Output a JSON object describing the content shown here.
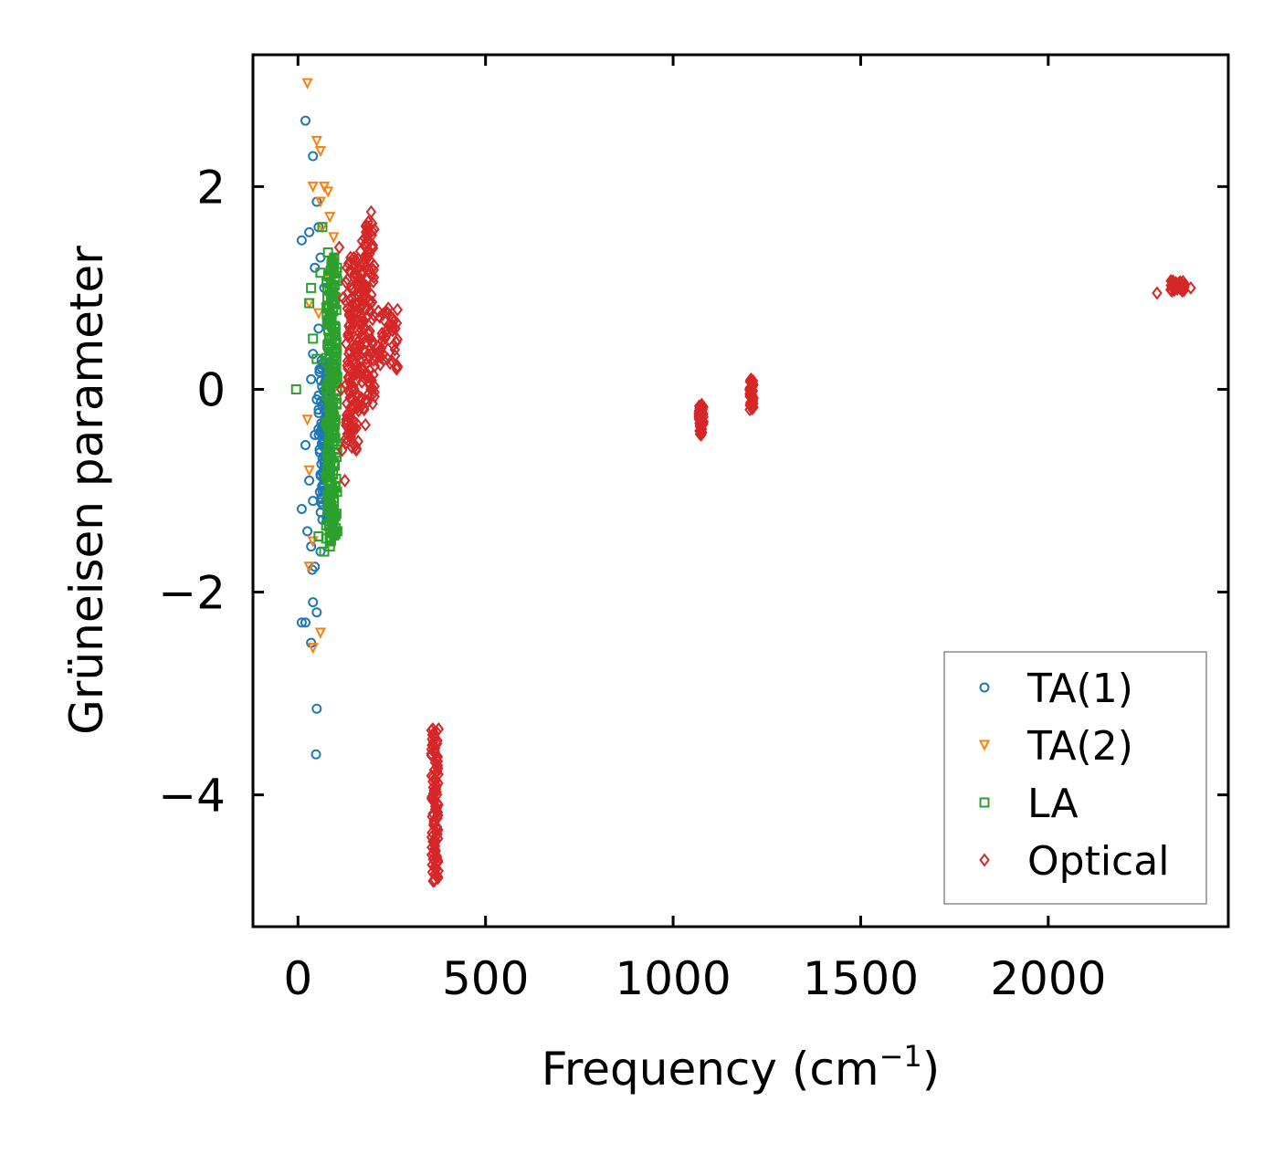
{
  "chart_data": {
    "type": "scatter",
    "title": "",
    "xlabel_main": "Frequency (cm",
    "xlabel_sup": "−1",
    "xlabel_end": ")",
    "ylabel": "Grüneisen parameter",
    "xlim": [
      -120,
      2480
    ],
    "ylim": [
      -5.3,
      3.3
    ],
    "xticks": [
      0,
      500,
      1000,
      1500,
      2000
    ],
    "xtick_labels": [
      "0",
      "500",
      "1000",
      "1500",
      "2000"
    ],
    "yticks": [
      -4,
      -2,
      0,
      2
    ],
    "ytick_labels": [
      "−4",
      "−2",
      "0",
      "2"
    ],
    "legend_position": "lower-right",
    "series": [
      {
        "name": "TA(1)",
        "marker": "circle",
        "color": "#1f77b4",
        "points": [
          [
            20,
            2.65
          ],
          [
            40,
            2.3
          ],
          [
            50,
            1.85
          ],
          [
            10,
            1.47
          ],
          [
            30,
            1.55
          ],
          [
            55,
            1.6
          ],
          [
            60,
            1.3
          ],
          [
            45,
            1.2
          ],
          [
            70,
            1.0
          ],
          [
            55,
            0.6
          ],
          [
            40,
            0.35
          ],
          [
            35,
            0.1
          ],
          [
            50,
            -0.1
          ],
          [
            45,
            -0.45
          ],
          [
            20,
            -0.55
          ],
          [
            30,
            -0.9
          ],
          [
            40,
            -1.1
          ],
          [
            10,
            -1.18
          ],
          [
            25,
            -1.4
          ],
          [
            35,
            -1.55
          ],
          [
            45,
            -1.75
          ],
          [
            38,
            -1.78
          ],
          [
            60,
            -1.6
          ],
          [
            40,
            -2.1
          ],
          [
            50,
            -2.2
          ],
          [
            10,
            -2.3
          ],
          [
            20,
            -2.3
          ],
          [
            35,
            -2.5
          ],
          [
            50,
            -3.15
          ],
          [
            48,
            -3.6
          ],
          [
            80,
            0.4
          ],
          [
            90,
            0.6
          ],
          [
            75,
            -0.4
          ],
          [
            85,
            -0.3
          ],
          [
            65,
            -1.0
          ],
          [
            70,
            -0.7
          ],
          [
            55,
            -0.2
          ],
          [
            95,
            0.8
          ]
        ],
        "clusters": [
          {
            "x": 72,
            "y_from": -1.3,
            "y_to": 0.3,
            "dx": 35
          }
        ]
      },
      {
        "name": "TA(2)",
        "marker": "triangle-down",
        "color": "#ff7f0e",
        "points": [
          [
            25,
            3.02
          ],
          [
            50,
            2.45
          ],
          [
            60,
            2.35
          ],
          [
            40,
            2.0
          ],
          [
            70,
            2.0
          ],
          [
            80,
            1.95
          ],
          [
            60,
            1.85
          ],
          [
            85,
            1.7
          ],
          [
            95,
            1.5
          ],
          [
            30,
            0.85
          ],
          [
            55,
            0.75
          ],
          [
            75,
            0.8
          ],
          [
            85,
            1.1
          ],
          [
            25,
            -0.3
          ],
          [
            30,
            -0.8
          ],
          [
            40,
            -1.5
          ],
          [
            30,
            -1.75
          ],
          [
            60,
            -2.4
          ],
          [
            40,
            -2.55
          ],
          [
            90,
            -1.45
          ],
          [
            100,
            0.9
          ],
          [
            65,
            1.6
          ]
        ],
        "clusters": []
      },
      {
        "name": "LA",
        "marker": "square",
        "color": "#2ca02c",
        "points": [
          [
            -5,
            0.0
          ],
          [
            30,
            0.85
          ],
          [
            40,
            0.5
          ],
          [
            35,
            1.0
          ],
          [
            60,
            1.15
          ],
          [
            80,
            1.35
          ],
          [
            90,
            0.5
          ],
          [
            100,
            -0.3
          ],
          [
            95,
            -1.1
          ],
          [
            100,
            -1.25
          ],
          [
            85,
            -1.55
          ],
          [
            70,
            -1.6
          ],
          [
            55,
            -1.45
          ],
          [
            65,
            1.6
          ],
          [
            50,
            0.3
          ]
        ],
        "clusters": [
          {
            "x": 90,
            "y_from": -1.5,
            "y_to": 1.3,
            "dx": 30
          }
        ]
      },
      {
        "name": "Optical",
        "marker": "diamond",
        "color": "#d62728",
        "points": [
          [
            110,
            1.4
          ],
          [
            120,
            0.9
          ],
          [
            115,
            0.0
          ],
          [
            118,
            -0.6
          ],
          [
            125,
            -0.9
          ],
          [
            130,
            1.2
          ],
          [
            140,
            1.3
          ],
          [
            180,
            -0.35
          ],
          [
            195,
            1.75
          ],
          [
            260,
            0.6
          ],
          [
            240,
            0.75
          ],
          [
            1070,
            -0.3
          ],
          [
            1210,
            -0.05
          ],
          [
            2290,
            0.95
          ],
          [
            2350,
            1.05
          ],
          [
            2380,
            1.0
          ],
          [
            360,
            -4.85
          ],
          [
            375,
            -3.35
          ]
        ],
        "clusters": [
          {
            "x": 185,
            "y_from": -0.2,
            "y_to": 1.65,
            "dx": 40
          },
          {
            "x": 240,
            "y_from": 0.2,
            "y_to": 0.8,
            "dx": 55
          },
          {
            "x": 145,
            "y_from": -0.6,
            "y_to": 1.3,
            "dx": 35
          },
          {
            "x": 365,
            "y_from": -4.85,
            "y_to": -3.35,
            "dx": 20
          },
          {
            "x": 1075,
            "y_from": -0.45,
            "y_to": -0.15,
            "dx": 14
          },
          {
            "x": 1210,
            "y_from": -0.2,
            "y_to": 0.1,
            "dx": 12
          },
          {
            "x": 2345,
            "y_from": 0.97,
            "y_to": 1.07,
            "dx": 40
          }
        ]
      }
    ]
  }
}
